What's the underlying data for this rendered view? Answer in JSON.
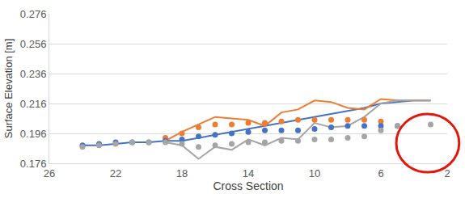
{
  "chart_data": {
    "type": "line",
    "x_label": "Cross Section",
    "y_label": "Surface Elevation [m]",
    "x": [
      24,
      23,
      22,
      21,
      20,
      19,
      18,
      17,
      16,
      15,
      14,
      13,
      12,
      11,
      10,
      9,
      8,
      7,
      6,
      5,
      4,
      3
    ],
    "series": [
      {
        "type": "line",
        "color": "#4472c4",
        "line_style": "solid",
        "values": [
          0.188,
          0.188,
          0.189,
          0.19,
          0.19,
          0.191,
          0.191,
          0.193,
          0.195,
          0.197,
          0.199,
          0.201,
          0.203,
          0.205,
          0.207,
          0.209,
          0.211,
          0.213,
          0.216,
          0.217,
          0.218,
          0.218
        ]
      },
      {
        "type": "line",
        "color": "#ed7d31",
        "line_style": "solid",
        "values": [
          null,
          null,
          null,
          null,
          null,
          0.191,
          0.197,
          0.202,
          0.207,
          0.206,
          0.205,
          0.201,
          0.21,
          0.212,
          0.218,
          0.217,
          0.213,
          0.212,
          0.219,
          0.218,
          0.218,
          0.218
        ]
      },
      {
        "type": "line",
        "color": "#a5a5a5",
        "line_style": "solid",
        "values": [
          null,
          null,
          null,
          null,
          null,
          0.19,
          0.188,
          0.179,
          0.187,
          0.185,
          0.192,
          0.188,
          0.193,
          0.192,
          0.203,
          0.2,
          0.201,
          0.207,
          0.216,
          0.218,
          0.218,
          0.218
        ]
      },
      {
        "type": "scatter",
        "color": "#ed7d31",
        "marker": "circle",
        "values": [
          null,
          null,
          null,
          null,
          null,
          0.193,
          0.196,
          0.2,
          0.202,
          0.202,
          0.203,
          0.203,
          0.204,
          0.205,
          0.205,
          0.205,
          0.205,
          0.205,
          0.204,
          null,
          null,
          null
        ]
      },
      {
        "type": "scatter",
        "color": "#4472c4",
        "marker": "circle",
        "values": [
          0.188,
          0.189,
          0.19,
          0.19,
          0.19,
          0.191,
          0.192,
          0.194,
          0.195,
          0.196,
          0.197,
          0.198,
          0.198,
          0.198,
          0.199,
          0.2,
          0.201,
          0.201,
          0.201,
          0.201,
          null,
          null
        ]
      },
      {
        "type": "scatter",
        "color": "#a5a5a5",
        "marker": "circle",
        "values": [
          0.187,
          0.188,
          0.189,
          0.19,
          0.19,
          0.19,
          0.189,
          0.187,
          0.188,
          0.189,
          0.19,
          0.19,
          0.191,
          0.191,
          0.192,
          0.192,
          0.193,
          0.194,
          0.198,
          0.201,
          null,
          0.202
        ]
      }
    ],
    "xlim": [
      26,
      2
    ],
    "xticks": [
      26,
      22,
      18,
      14,
      10,
      6,
      2
    ],
    "ylim": [
      0.176,
      0.276
    ],
    "yticks": [
      0.176,
      0.196,
      0.216,
      0.236,
      0.256,
      0.276
    ],
    "grid": true
  }
}
